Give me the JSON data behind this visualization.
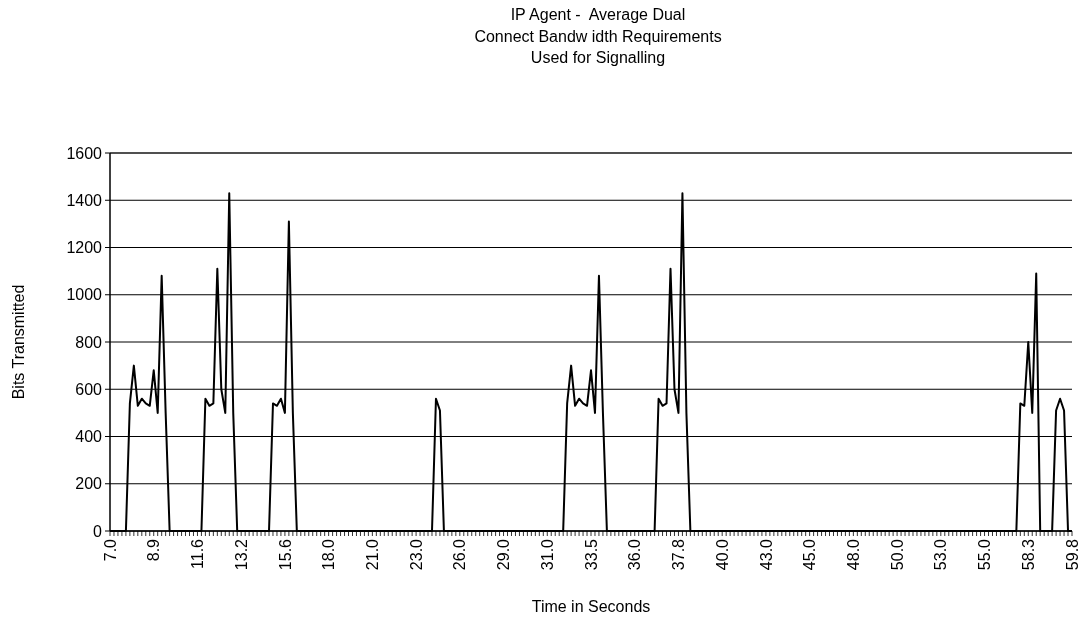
{
  "chart_data": {
    "type": "line",
    "title": "IP Agent -  Average Dual\nConnect Bandw idth Requirements\nUsed for Signalling",
    "xlabel": "Time in Seconds",
    "ylabel": "Bits Transmitted",
    "categories": [
      "7.0",
      null,
      null,
      null,
      null,
      null,
      null,
      null,
      null,
      null,
      null,
      "8.9",
      null,
      null,
      null,
      null,
      null,
      null,
      null,
      null,
      null,
      null,
      "11.6",
      null,
      null,
      null,
      null,
      null,
      null,
      null,
      null,
      null,
      null,
      "13.2",
      null,
      null,
      null,
      null,
      null,
      null,
      null,
      null,
      null,
      null,
      "15.6",
      null,
      null,
      null,
      null,
      null,
      null,
      null,
      null,
      null,
      null,
      "18.0",
      null,
      null,
      null,
      null,
      null,
      null,
      null,
      null,
      null,
      null,
      "21.0",
      null,
      null,
      null,
      null,
      null,
      null,
      null,
      null,
      null,
      null,
      "23.0",
      null,
      null,
      null,
      null,
      null,
      null,
      null,
      null,
      null,
      null,
      "26.0",
      null,
      null,
      null,
      null,
      null,
      null,
      null,
      null,
      null,
      null,
      "29.0",
      null,
      null,
      null,
      null,
      null,
      null,
      null,
      null,
      null,
      null,
      "31.0",
      null,
      null,
      null,
      null,
      null,
      null,
      null,
      null,
      null,
      null,
      "33.5",
      null,
      null,
      null,
      null,
      null,
      null,
      null,
      null,
      null,
      null,
      "36.0",
      null,
      null,
      null,
      null,
      null,
      null,
      null,
      null,
      null,
      null,
      "37.8",
      null,
      null,
      null,
      null,
      null,
      null,
      null,
      null,
      null,
      null,
      "40.0",
      null,
      null,
      null,
      null,
      null,
      null,
      null,
      null,
      null,
      null,
      "43.0",
      null,
      null,
      null,
      null,
      null,
      null,
      null,
      null,
      null,
      null,
      "45.0",
      null,
      null,
      null,
      null,
      null,
      null,
      null,
      null,
      null,
      null,
      "48.0",
      null,
      null,
      null,
      null,
      null,
      null,
      null,
      null,
      null,
      null,
      "50.0",
      null,
      null,
      null,
      null,
      null,
      null,
      null,
      null,
      null,
      null,
      "53.0",
      null,
      null,
      null,
      null,
      null,
      null,
      null,
      null,
      null,
      null,
      "55.0",
      null,
      null,
      null,
      null,
      null,
      null,
      null,
      null,
      null,
      null,
      "58.3",
      null,
      null,
      null,
      null,
      null,
      null,
      null,
      null,
      null,
      null,
      "59.8"
    ],
    "series": [
      {
        "color": "#000000",
        "values": [
          0,
          0,
          0,
          0,
          0,
          540,
          700,
          530,
          560,
          540,
          530,
          680,
          500,
          1080,
          500,
          0,
          0,
          0,
          0,
          0,
          0,
          0,
          0,
          0,
          560,
          530,
          540,
          1110,
          600,
          500,
          1430,
          500,
          0,
          0,
          0,
          0,
          0,
          0,
          0,
          0,
          0,
          540,
          530,
          560,
          500,
          1310,
          500,
          0,
          0,
          0,
          0,
          0,
          0,
          0,
          0,
          0,
          0,
          0,
          0,
          0,
          0,
          0,
          0,
          0,
          0,
          0,
          0,
          0,
          0,
          0,
          0,
          0,
          0,
          0,
          0,
          0,
          0,
          0,
          0,
          0,
          0,
          0,
          560,
          510,
          0,
          0,
          0,
          0,
          0,
          0,
          0,
          0,
          0,
          0,
          0,
          0,
          0,
          0,
          0,
          0,
          0,
          0,
          0,
          0,
          0,
          0,
          0,
          0,
          0,
          0,
          0,
          0,
          0,
          0,
          0,
          540,
          700,
          530,
          560,
          540,
          530,
          680,
          500,
          1080,
          500,
          0,
          0,
          0,
          0,
          0,
          0,
          0,
          0,
          0,
          0,
          0,
          0,
          0,
          560,
          530,
          540,
          1110,
          600,
          500,
          1430,
          500,
          0,
          0,
          0,
          0,
          0,
          0,
          0,
          0,
          0,
          0,
          0,
          0,
          0,
          0,
          0,
          0,
          0,
          0,
          0,
          0,
          0,
          0,
          0,
          0,
          0,
          0,
          0,
          0,
          0,
          0,
          0,
          0,
          0,
          0,
          0,
          0,
          0,
          0,
          0,
          0,
          0,
          0,
          0,
          0,
          0,
          0,
          0,
          0,
          0,
          0,
          0,
          0,
          0,
          0,
          0,
          0,
          0,
          0,
          0,
          0,
          0,
          0,
          0,
          0,
          0,
          0,
          0,
          0,
          0,
          0,
          0,
          0,
          0,
          0,
          0,
          0,
          0,
          0,
          0,
          0,
          0,
          0,
          0,
          540,
          530,
          800,
          500,
          1090,
          0,
          0,
          0,
          0,
          510,
          560,
          510,
          0,
          0
        ]
      }
    ],
    "ylim": [
      0,
      1600
    ],
    "yticks": [
      0,
      200,
      400,
      600,
      800,
      1000,
      1200,
      1400,
      1600
    ],
    "grid": "y",
    "marker": "none",
    "line_style": "solid"
  }
}
